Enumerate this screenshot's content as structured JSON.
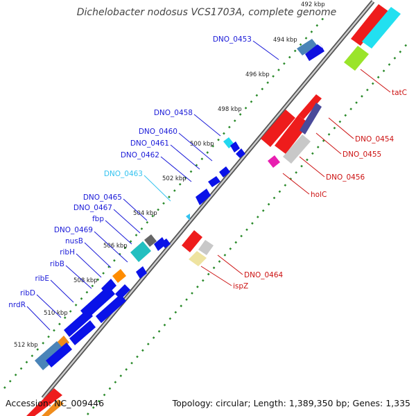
{
  "title": "Dichelobacter nodosus VCS1703A, complete genome",
  "footer": {
    "accession": "Accession: NC_009446",
    "topology": "Topology: circular; Length: 1,389,350 bp; Genes: 1,335"
  },
  "kbp_ticks": [
    "492 kbp",
    "494 kbp",
    "496 kbp",
    "498 kbp",
    "500 kbp",
    "502 kbp",
    "504 kbp",
    "506 kbp",
    "508 kbp",
    "510 kbp",
    "512 kbp"
  ],
  "gene_labels_left": [
    "DNO_0453",
    "DNO_0458",
    "DNO_0460",
    "DNO_0461",
    "DNO_0462",
    "DNO_0463",
    "DNO_0465",
    "DNO_0467",
    "fbp",
    "DNO_0469",
    "nusB",
    "ribH",
    "ribB",
    "ribE",
    "ribD",
    "nrdR"
  ],
  "gene_labels_right": [
    "tatC",
    "DNO_0454",
    "DNO_0455",
    "DNO_0456",
    "holC",
    "DNO_0464",
    "ispZ"
  ],
  "colors": {
    "forward_gene": "#0a12e8",
    "reverse_gene": "#ee1c1c",
    "highlight_label": "#33c3f0",
    "backbone": "#888888",
    "tick_dots": "#2a8a2a",
    "left_label": "#1a1ad8",
    "right_label": "#cc1111"
  }
}
